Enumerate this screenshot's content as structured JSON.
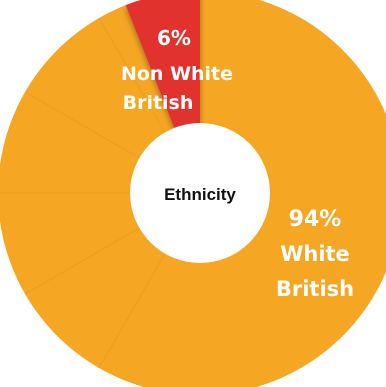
{
  "chart_data": {
    "type": "pie",
    "title": "Ethnicity",
    "slices": [
      {
        "label_lines": [
          "White",
          "British"
        ],
        "value": 94,
        "value_label": "94%",
        "color": "#F5A623"
      },
      {
        "label_lines": [
          "Non White",
          "British"
        ],
        "value": 6,
        "value_label": "6%",
        "color": "#E2302D"
      }
    ]
  },
  "colors": {
    "ring_shadow": "#D98C10",
    "background": "#FFFFFF"
  }
}
